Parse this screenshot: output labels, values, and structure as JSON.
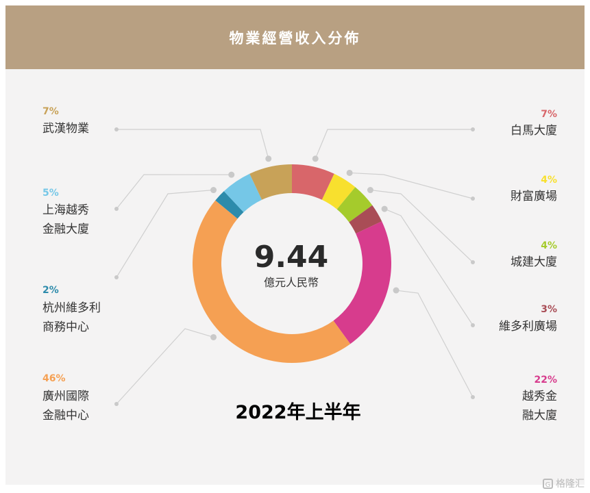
{
  "header": {
    "title": "物業經營收入分佈"
  },
  "chart_data": {
    "type": "pie",
    "center_value": "9.44",
    "center_unit": "億元人民幣",
    "period_label": "2022年上半年",
    "slices": [
      {
        "name": "白馬大廈",
        "percent": 7,
        "percent_label": "7%",
        "color": "#d8666a"
      },
      {
        "name": "財富廣場",
        "percent": 4,
        "percent_label": "4%",
        "color": "#f8e02e"
      },
      {
        "name": "城建大廈",
        "percent": 4,
        "percent_label": "4%",
        "color": "#a5cb2c"
      },
      {
        "name": "維多利廣場",
        "percent": 3,
        "percent_label": "3%",
        "color": "#a94d56"
      },
      {
        "name": "越秀金融大廈",
        "percent": 22,
        "percent_label": "22%",
        "color": "#d73c8d"
      },
      {
        "name": "廣州國際金融中心",
        "percent": 46,
        "percent_label": "46%",
        "color": "#f5a053"
      },
      {
        "name": "杭州維多利商務中心",
        "percent": 2,
        "percent_label": "2%",
        "color": "#2d8bab"
      },
      {
        "name": "上海越秀金融大廈",
        "percent": 5,
        "percent_label": "5%",
        "color": "#75c7e7"
      },
      {
        "name": "武漢物業",
        "percent": 7,
        "percent_label": "7%",
        "color": "#c8a258"
      }
    ]
  },
  "watermark": {
    "text": "格隆汇",
    "icon": "g-logo-icon"
  }
}
